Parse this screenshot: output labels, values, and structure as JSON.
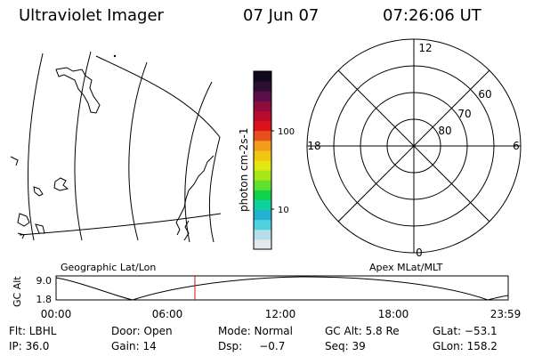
{
  "header": {
    "title": "Ultraviolet Imager",
    "date": "07 Jun 07",
    "time": "07:26:06 UT"
  },
  "colorbar": {
    "label": "photon cm-2s-1",
    "ticks": [
      "100",
      "10"
    ],
    "colors": [
      "#dfe9ee",
      "#b6dde9",
      "#4fd2e0",
      "#23b2d2",
      "#10d0a0",
      "#0fd24b",
      "#5fe12b",
      "#a8e617",
      "#e2e612",
      "#f2c413",
      "#f39a18",
      "#e8501b",
      "#da131c",
      "#b80b2b",
      "#8d0c3e",
      "#5b0f4a",
      "#2e0e35",
      "#10081c"
    ]
  },
  "left_panel": {
    "label": "Geographic Lat/Lon"
  },
  "right_panel": {
    "label": "Apex MLat/MLT",
    "mlt_labels": [
      "12",
      "18",
      "6",
      "0"
    ],
    "lat_labels": [
      "60",
      "70",
      "80"
    ]
  },
  "orbit": {
    "y_label": "GC Alt",
    "y_ticks": [
      "9.0",
      "1.8"
    ],
    "x_ticks": [
      "00:00",
      "06:00",
      "12:00",
      "18:00",
      "23:59"
    ]
  },
  "info": {
    "flt": "Flt: LBHL",
    "door": "Door: Open",
    "mode": "Mode: Normal",
    "gc_alt": "GC Alt: 5.8 Re",
    "glat": "GLat: −53.1",
    "ip": "IP: 36.0",
    "gain": "Gain: 14",
    "dsp": "Dsp:     −0.7",
    "seq": "Seq: 39",
    "glon": "GLon: 158.2"
  }
}
